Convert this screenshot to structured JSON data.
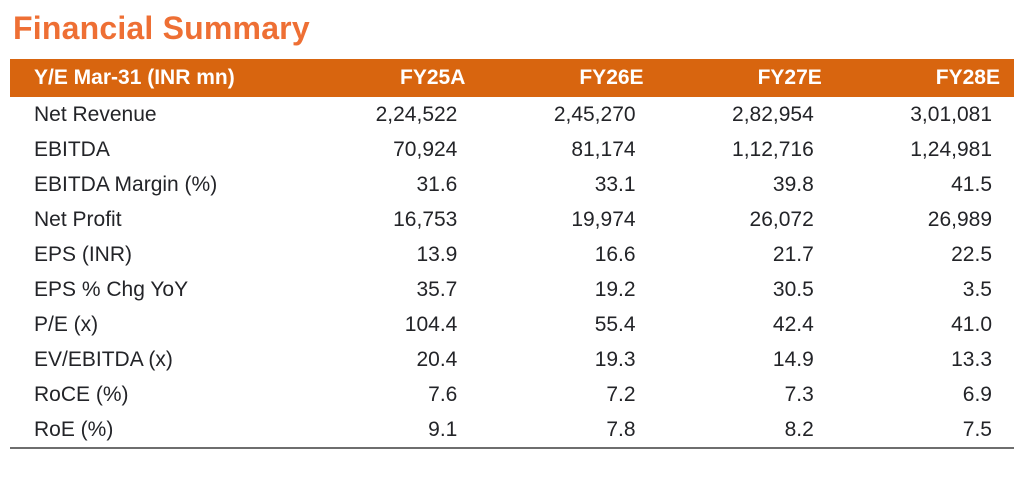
{
  "page": {
    "title": "Financial Summary"
  },
  "table": {
    "columns": [
      "Y/E Mar-31 (INR mn)",
      "FY25A",
      "FY26E",
      "FY27E",
      "FY28E"
    ],
    "rows": [
      {
        "label": "Net Revenue",
        "values": [
          "2,24,522",
          "2,45,270",
          "2,82,954",
          "3,01,081"
        ]
      },
      {
        "label": "EBITDA",
        "values": [
          "70,924",
          "81,174",
          "1,12,716",
          "1,24,981"
        ]
      },
      {
        "label": "EBITDA Margin (%)",
        "values": [
          "31.6",
          "33.1",
          "39.8",
          "41.5"
        ]
      },
      {
        "label": "Net Profit",
        "values": [
          "16,753",
          "19,974",
          "26,072",
          "26,989"
        ]
      },
      {
        "label": "EPS (INR)",
        "values": [
          "13.9",
          "16.6",
          "21.7",
          "22.5"
        ]
      },
      {
        "label": "EPS % Chg YoY",
        "values": [
          "35.7",
          "19.2",
          "30.5",
          "3.5"
        ]
      },
      {
        "label": "P/E (x)",
        "values": [
          "104.4",
          "55.4",
          "42.4",
          "41.0"
        ]
      },
      {
        "label": "EV/EBITDA (x)",
        "values": [
          "20.4",
          "19.3",
          "14.9",
          "13.3"
        ]
      },
      {
        "label": "RoCE (%)",
        "values": [
          "7.6",
          "7.2",
          "7.3",
          "6.9"
        ]
      },
      {
        "label": "RoE (%)",
        "values": [
          "9.1",
          "7.8",
          "8.2",
          "7.5"
        ]
      }
    ]
  },
  "colors": {
    "title": "#EE6F34",
    "header_bg": "#D8650F",
    "header_text": "#FFFFFF",
    "body_text": "#232428",
    "bottom_rule": "#6E6E6E"
  }
}
